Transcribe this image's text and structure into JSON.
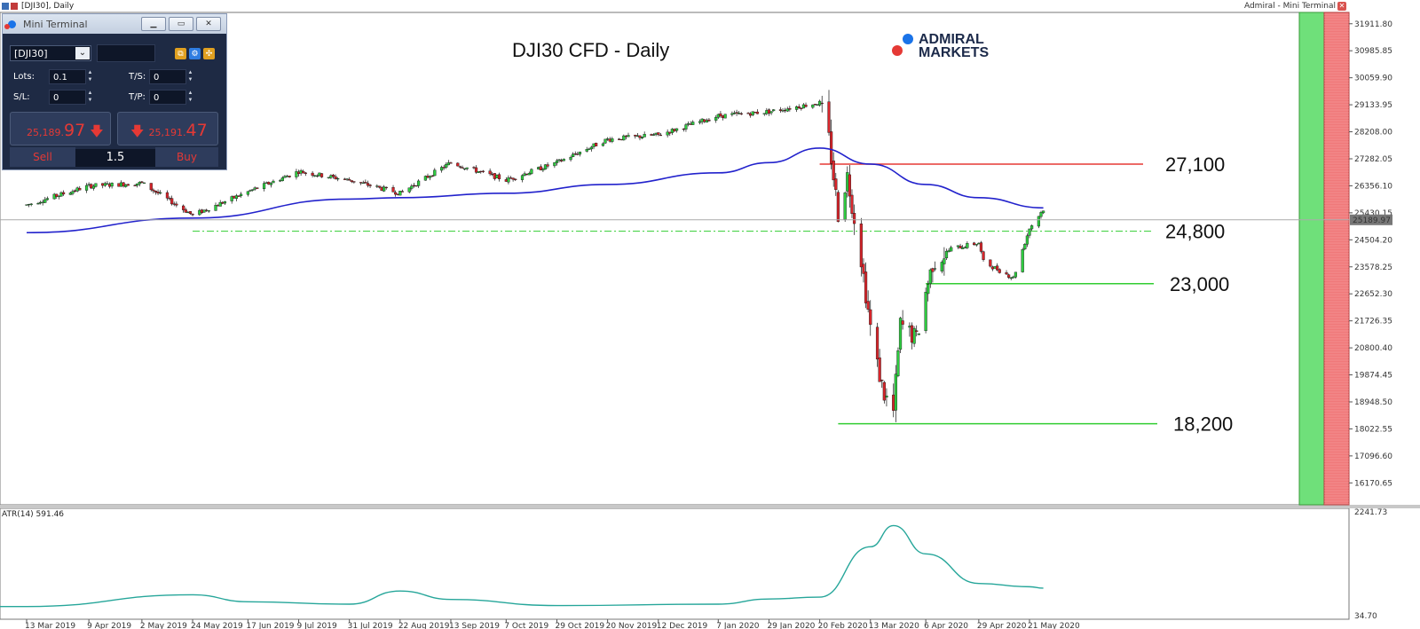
{
  "window_title": "[DJI30], Daily",
  "top_right_label": "Admiral - Mini Terminal",
  "chart_data": {
    "type": "candlestick",
    "title": "DJI30 CFD - Daily",
    "symbol": "DJI30",
    "timeframe": "Daily",
    "current_price": 25189.97,
    "current_price_label": "25189.97",
    "y_ticks": [
      "31911.80",
      "30985.85",
      "30059.90",
      "29133.95",
      "28208.00",
      "27282.05",
      "26356.10",
      "25430.15",
      "24504.20",
      "23578.25",
      "22652.30",
      "21726.35",
      "20800.40",
      "19874.45",
      "18948.50",
      "18022.55",
      "17096.60",
      "16170.65"
    ],
    "y_range": [
      15420,
      32300
    ],
    "x_ticks": [
      "13 Mar 2019",
      "9 Apr 2019",
      "2 May 2019",
      "24 May 2019",
      "17 Jun 2019",
      "9 Jul 2019",
      "31 Jul 2019",
      "22 Aug 2019",
      "13 Sep 2019",
      "7 Oct 2019",
      "29 Oct 2019",
      "20 Nov 2019",
      "12 Dec 2019",
      "7 Jan 2020",
      "29 Jan 2020",
      "20 Feb 2020",
      "13 Mar 2020",
      "6 Apr 2020",
      "29 Apr 2020",
      "21 May 2020"
    ],
    "close_path": [
      [
        "13 Mar 2019",
        25700
      ],
      [
        "9 Apr 2019",
        26350
      ],
      [
        "2 May 2019",
        26450
      ],
      [
        "24 May 2019",
        25350
      ],
      [
        "17 Jun 2019",
        26150
      ],
      [
        "9 Jul 2019",
        26850
      ],
      [
        "31 Jul 2019",
        26550
      ],
      [
        "22 Aug 2019",
        26100
      ],
      [
        "13 Sep 2019",
        27150
      ],
      [
        "7 Oct 2019",
        26550
      ],
      [
        "29 Oct 2019",
        27150
      ],
      [
        "20 Nov 2019",
        27950
      ],
      [
        "12 Dec 2019",
        28100
      ],
      [
        "7 Jan 2020",
        28750
      ],
      [
        "29 Jan 2020",
        28900
      ],
      [
        "20 Feb 2020",
        29200
      ],
      [
        "13 Mar 2020",
        21500
      ],
      [
        "6 Apr 2020",
        22700
      ],
      [
        "29 Apr 2020",
        24400
      ],
      [
        "21 May 2020",
        24900
      ]
    ],
    "extra_closes": [
      [
        "24 Feb 2020",
        27950
      ],
      [
        "28 Feb 2020",
        25400
      ],
      [
        "3 Mar 2020",
        26700
      ],
      [
        "9 Mar 2020",
        23850
      ],
      [
        "16 Mar 2020",
        20200
      ],
      [
        "19 Mar 2020",
        19200
      ],
      [
        "23 Mar 2020",
        18600
      ],
      [
        "26 Mar 2020",
        21600
      ],
      [
        "2 Apr 2020",
        21100
      ],
      [
        "9 Apr 2020",
        23700
      ],
      [
        "17 Apr 2020",
        24200
      ],
      [
        "1 May 2020",
        23750
      ],
      [
        "14 May 2020",
        23200
      ],
      [
        "27 May 2020",
        25550
      ]
    ],
    "moving_average": [
      [
        "13 Mar 2019",
        24750
      ],
      [
        "24 May 2019",
        25250
      ],
      [
        "31 Jul 2019",
        25900
      ],
      [
        "22 Aug 2019",
        25950
      ],
      [
        "7 Oct 2019",
        26100
      ],
      [
        "20 Nov 2019",
        26400
      ],
      [
        "7 Jan 2020",
        26800
      ],
      [
        "29 Jan 2020",
        27150
      ],
      [
        "20 Feb 2020",
        27650
      ],
      [
        "13 Mar 2020",
        27100
      ],
      [
        "6 Apr 2020",
        26400
      ],
      [
        "29 Apr 2020",
        25950
      ],
      [
        "27 May 2020",
        25600
      ]
    ],
    "levels": [
      {
        "label": "27,100",
        "value": 27100,
        "color": "#e53935",
        "style": "solid",
        "from": "20 Feb 2020"
      },
      {
        "label": "24,800",
        "value": 24800,
        "color": "#32cd32",
        "style": "dashdot",
        "from": "24 May 2019"
      },
      {
        "label": "23,000",
        "value": 23000,
        "color": "#32cd32",
        "style": "solid",
        "from": "6 Apr 2020"
      },
      {
        "label": "18,200",
        "value": 18200,
        "color": "#32cd32",
        "style": "solid",
        "from": "28 Feb 2020"
      }
    ],
    "indicator": {
      "label": "ATR(14) 591.46",
      "y_ticks": [
        "2241.73",
        "34.70"
      ],
      "range": [
        34.7,
        2241.73
      ],
      "series": [
        [
          "13 Mar 2019",
          230
        ],
        [
          "24 May 2019",
          480
        ],
        [
          "17 Jun 2019",
          330
        ],
        [
          "31 Jul 2019",
          280
        ],
        [
          "22 Aug 2019",
          560
        ],
        [
          "13 Sep 2019",
          380
        ],
        [
          "29 Oct 2019",
          250
        ],
        [
          "7 Jan 2020",
          280
        ],
        [
          "29 Jan 2020",
          390
        ],
        [
          "20 Feb 2020",
          430
        ],
        [
          "13 Mar 2020",
          1500
        ],
        [
          "23 Mar 2020",
          1950
        ],
        [
          "6 Apr 2020",
          1350
        ],
        [
          "29 Apr 2020",
          720
        ],
        [
          "21 May 2020",
          650
        ],
        [
          "27 May 2020",
          620
        ]
      ]
    }
  },
  "mini_terminal": {
    "title": "Mini Terminal",
    "symbol": "[DJI30]",
    "lots_label": "Lots:",
    "lots_value": "0.1",
    "ts_label": "T/S:",
    "ts_value": "0",
    "sl_label": "S/L:",
    "sl_value": "0",
    "tp_label": "T/P:",
    "tp_value": "0",
    "sell_small": "25,189.",
    "sell_big": "97",
    "buy_small": "25,191.",
    "buy_big": "47",
    "sell_label": "Sell",
    "buy_label": "Buy",
    "lot_size": "1.5"
  },
  "logo": {
    "line1": "ADMIRAL",
    "line2": "MARKETS"
  },
  "colors": {
    "bull": "#2ecc40",
    "bear": "#d9252b",
    "ma": "#2222cc",
    "atr": "#26a69a",
    "green_panel": "#6fe07a",
    "red_panel": "#f0797a"
  }
}
